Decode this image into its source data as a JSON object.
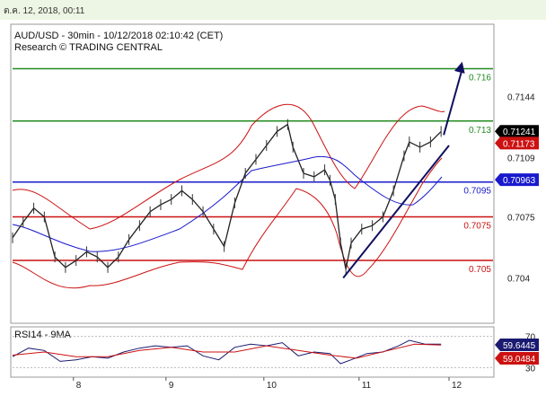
{
  "top_bar": {
    "text": "ต.ค. 12, 2018, 00:11"
  },
  "chart_data": {
    "type": "line",
    "title": "AUD/USD - 30min - 10/12/2018 02:10:42 (CET)",
    "subtitle": "Research © TRADING CENTRAL",
    "price_axis": {
      "ylim": [
        0.7015,
        0.7185
      ],
      "ticks": [
        0.7144,
        0.7109,
        0.7075,
        0.704
      ]
    },
    "x_ticks": [
      "8",
      "9",
      "10",
      "11",
      "12"
    ],
    "x_range": [
      0,
      165
    ],
    "x_tick_positions": [
      23,
      58,
      95,
      131,
      165
    ],
    "levels": [
      {
        "value": 0.716,
        "label": "0.716",
        "color": "#228b22"
      },
      {
        "value": 0.713,
        "label": "0.713",
        "color": "#228b22"
      },
      {
        "value": 0.7095,
        "label": "0.7095",
        "color": "#1a1acc"
      },
      {
        "value": 0.7075,
        "label": "0.7075",
        "color": "#cc1111"
      },
      {
        "value": 0.705,
        "label": "0.705",
        "color": "#cc1111"
      }
    ],
    "last_price": {
      "value": 0.71241,
      "label": "0.71241",
      "color": "#000000"
    },
    "price_tags": [
      {
        "value": 0.71173,
        "label": "0.71173",
        "color": "#cc1111"
      },
      {
        "value": 0.70963,
        "label": "0.70963",
        "color": "#1a1acc"
      }
    ],
    "trendline": {
      "x": [
        125,
        165
      ],
      "y": [
        0.704,
        0.7116
      ],
      "color": "#101060"
    },
    "forecast_arrow": {
      "x": [
        163,
        170
      ],
      "y": [
        0.7122,
        0.7164
      ],
      "color": "#101060"
    },
    "price_series": [
      {
        "x": 0,
        "y": 0.7063
      },
      {
        "x": 4,
        "y": 0.7072
      },
      {
        "x": 8,
        "y": 0.708
      },
      {
        "x": 12,
        "y": 0.7075
      },
      {
        "x": 16,
        "y": 0.7052
      },
      {
        "x": 20,
        "y": 0.7046
      },
      {
        "x": 24,
        "y": 0.705
      },
      {
        "x": 28,
        "y": 0.7055
      },
      {
        "x": 32,
        "y": 0.7052
      },
      {
        "x": 36,
        "y": 0.7046
      },
      {
        "x": 40,
        "y": 0.7052
      },
      {
        "x": 44,
        "y": 0.7062
      },
      {
        "x": 48,
        "y": 0.707
      },
      {
        "x": 52,
        "y": 0.7078
      },
      {
        "x": 56,
        "y": 0.7082
      },
      {
        "x": 60,
        "y": 0.7085
      },
      {
        "x": 64,
        "y": 0.709
      },
      {
        "x": 68,
        "y": 0.7085
      },
      {
        "x": 72,
        "y": 0.7078
      },
      {
        "x": 76,
        "y": 0.7068
      },
      {
        "x": 80,
        "y": 0.7058
      },
      {
        "x": 84,
        "y": 0.7083
      },
      {
        "x": 88,
        "y": 0.71
      },
      {
        "x": 92,
        "y": 0.7108
      },
      {
        "x": 96,
        "y": 0.7116
      },
      {
        "x": 100,
        "y": 0.7124
      },
      {
        "x": 104,
        "y": 0.7128
      },
      {
        "x": 106,
        "y": 0.7115
      },
      {
        "x": 110,
        "y": 0.71
      },
      {
        "x": 114,
        "y": 0.7098
      },
      {
        "x": 118,
        "y": 0.7102
      },
      {
        "x": 120,
        "y": 0.7096
      },
      {
        "x": 122,
        "y": 0.7085
      },
      {
        "x": 124,
        "y": 0.706
      },
      {
        "x": 126,
        "y": 0.7045
      },
      {
        "x": 128,
        "y": 0.706
      },
      {
        "x": 132,
        "y": 0.7068
      },
      {
        "x": 136,
        "y": 0.707
      },
      {
        "x": 140,
        "y": 0.7075
      },
      {
        "x": 144,
        "y": 0.709
      },
      {
        "x": 148,
        "y": 0.711
      },
      {
        "x": 150,
        "y": 0.7118
      },
      {
        "x": 154,
        "y": 0.7115
      },
      {
        "x": 158,
        "y": 0.7118
      },
      {
        "x": 162,
        "y": 0.7124
      }
    ],
    "rsi_panel": {
      "title": "RSI14 - 9MA",
      "ylim": [
        20,
        80
      ],
      "ticks": [
        70,
        30
      ],
      "rsi_value": {
        "value": 59.6445,
        "label": "59.6445",
        "color": "#1a1a70"
      },
      "ma_value": {
        "value": 59.0484,
        "label": "59.0484",
        "color": "#cc1111"
      },
      "rsi_series": [
        {
          "x": 0,
          "y": 44
        },
        {
          "x": 6,
          "y": 55
        },
        {
          "x": 12,
          "y": 52
        },
        {
          "x": 18,
          "y": 38
        },
        {
          "x": 24,
          "y": 40
        },
        {
          "x": 30,
          "y": 44
        },
        {
          "x": 36,
          "y": 42
        },
        {
          "x": 42,
          "y": 50
        },
        {
          "x": 48,
          "y": 55
        },
        {
          "x": 54,
          "y": 58
        },
        {
          "x": 60,
          "y": 56
        },
        {
          "x": 66,
          "y": 58
        },
        {
          "x": 72,
          "y": 45
        },
        {
          "x": 78,
          "y": 40
        },
        {
          "x": 84,
          "y": 56
        },
        {
          "x": 90,
          "y": 60
        },
        {
          "x": 96,
          "y": 58
        },
        {
          "x": 102,
          "y": 62
        },
        {
          "x": 108,
          "y": 45
        },
        {
          "x": 114,
          "y": 50
        },
        {
          "x": 120,
          "y": 48
        },
        {
          "x": 124,
          "y": 35
        },
        {
          "x": 128,
          "y": 40
        },
        {
          "x": 134,
          "y": 48
        },
        {
          "x": 140,
          "y": 50
        },
        {
          "x": 146,
          "y": 58
        },
        {
          "x": 150,
          "y": 65
        },
        {
          "x": 156,
          "y": 60
        },
        {
          "x": 162,
          "y": 60
        }
      ],
      "ma_series": [
        {
          "x": 0,
          "y": 46
        },
        {
          "x": 12,
          "y": 50
        },
        {
          "x": 24,
          "y": 44
        },
        {
          "x": 36,
          "y": 44
        },
        {
          "x": 48,
          "y": 52
        },
        {
          "x": 60,
          "y": 56
        },
        {
          "x": 72,
          "y": 50
        },
        {
          "x": 84,
          "y": 50
        },
        {
          "x": 96,
          "y": 58
        },
        {
          "x": 108,
          "y": 52
        },
        {
          "x": 120,
          "y": 46
        },
        {
          "x": 130,
          "y": 42
        },
        {
          "x": 142,
          "y": 52
        },
        {
          "x": 152,
          "y": 60
        },
        {
          "x": 162,
          "y": 59
        }
      ]
    }
  }
}
